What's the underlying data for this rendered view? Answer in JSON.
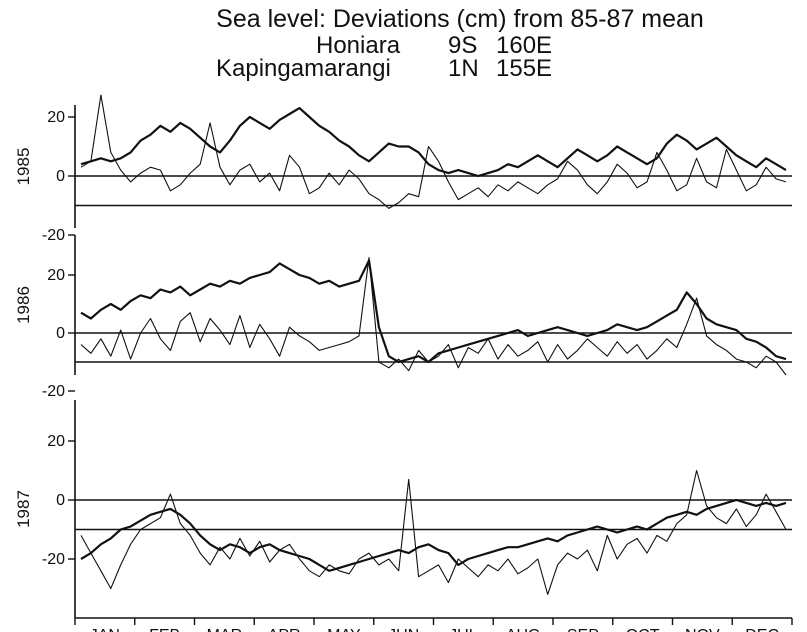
{
  "title": "Sea level: Deviations (cm) from 85-87 mean",
  "stations": [
    {
      "name": "Honiara",
      "lat": "9S",
      "lon": "160E"
    },
    {
      "name": "Kapingamarangi",
      "lat": "1N",
      "lon": "155E"
    }
  ],
  "colors": {
    "ink": "#111111",
    "background": "#ffffff"
  },
  "chart_data": {
    "type": "line",
    "xlabel": "",
    "ylabel": "",
    "x_tick_labels": [
      "JAN",
      "FEB",
      "MAR",
      "APR",
      "MAY",
      "JUN",
      "JUL",
      "AUG",
      "SEP",
      "OCT",
      "NOV",
      "DEC"
    ],
    "panels": [
      {
        "year": "1985",
        "ylim": [
          -25,
          25
        ],
        "y_ticks": [
          "20",
          "0",
          "-20"
        ],
        "reference_lines": [
          0,
          -10
        ],
        "series": [
          {
            "values": [
              4,
              5,
              6,
              5,
              6,
              8,
              12,
              14,
              17,
              15,
              18,
              16,
              13,
              10,
              8,
              12,
              17,
              20,
              18,
              16,
              19,
              21,
              23,
              20,
              17,
              15,
              12,
              10,
              7,
              5,
              8,
              11,
              10,
              10,
              8,
              4,
              2,
              1,
              2,
              1,
              0,
              1,
              2,
              4,
              3,
              5,
              7,
              5,
              3,
              6,
              9,
              7,
              5,
              7,
              10,
              8,
              6,
              4,
              6,
              11,
              14,
              12,
              9,
              11,
              13,
              10,
              7,
              5,
              3,
              6,
              4,
              2
            ]
          },
          {
            "values": [
              3,
              5,
              32,
              8,
              2,
              -2,
              1,
              3,
              2,
              -5,
              -3,
              1,
              4,
              18,
              3,
              -3,
              2,
              4,
              -2,
              1,
              -5,
              7,
              3,
              -6,
              -4,
              1,
              -3,
              2,
              -1,
              -6,
              -8,
              -11,
              -9,
              -6,
              -7,
              10,
              5,
              -2,
              -8,
              -6,
              -4,
              -7,
              -3,
              -5,
              -2,
              -4,
              -6,
              -3,
              -1,
              5,
              2,
              -3,
              -6,
              -2,
              4,
              1,
              -4,
              -2,
              8,
              2,
              -5,
              -3,
              6,
              -2,
              -4,
              9,
              2,
              -5,
              -3,
              3,
              -1,
              -2
            ]
          }
        ]
      },
      {
        "year": "1986",
        "ylim": [
          -25,
          25
        ],
        "y_ticks": [
          "20",
          "0",
          "-20"
        ],
        "reference_lines": [
          0,
          -10
        ],
        "series": [
          {
            "values": [
              7,
              5,
              8,
              10,
              8,
              11,
              13,
              12,
              15,
              14,
              16,
              13,
              15,
              17,
              16,
              18,
              17,
              19,
              20,
              21,
              24,
              22,
              20,
              19,
              17,
              18,
              16,
              17,
              18,
              25,
              2,
              -8,
              -10,
              -9,
              -8,
              -10,
              -7,
              -6,
              -5,
              -4,
              -3,
              -2,
              -1,
              0,
              1,
              -1,
              0,
              1,
              2,
              1,
              0,
              -1,
              0,
              1,
              3,
              2,
              1,
              2,
              4,
              6,
              8,
              14,
              10,
              5,
              3,
              2,
              1,
              -2,
              -3,
              -5,
              -8,
              -9
            ]
          },
          {
            "values": [
              -4,
              -7,
              -2,
              -8,
              1,
              -9,
              0,
              5,
              -2,
              -6,
              4,
              7,
              -3,
              5,
              1,
              -4,
              6,
              -5,
              3,
              -2,
              -8,
              2,
              -1,
              -3,
              -6,
              -5,
              -4,
              -3,
              -1,
              26,
              -10,
              -12,
              -9,
              -13,
              -6,
              -10,
              -8,
              -4,
              -12,
              -5,
              -7,
              -2,
              -9,
              -4,
              -8,
              -6,
              -3,
              -10,
              -4,
              -9,
              -6,
              -2,
              -5,
              -8,
              -3,
              -7,
              -4,
              -9,
              -6,
              -2,
              -5,
              3,
              12,
              -1,
              -4,
              -6,
              -9,
              -10,
              -12,
              -8,
              -10,
              -18
            ]
          }
        ]
      },
      {
        "year": "1987",
        "ylim": [
          -32,
          25
        ],
        "y_ticks": [
          "20",
          "0",
          "-20"
        ],
        "reference_lines": [
          0,
          -10
        ],
        "series": [
          {
            "values": [
              -20,
              -18,
              -15,
              -13,
              -10,
              -9,
              -7,
              -5,
              -4,
              -3,
              -5,
              -8,
              -12,
              -15,
              -17,
              -15,
              -16,
              -18,
              -16,
              -15,
              -17,
              -18,
              -19,
              -20,
              -22,
              -24,
              -23,
              -22,
              -21,
              -20,
              -19,
              -18,
              -17,
              -18,
              -16,
              -15,
              -17,
              -18,
              -22,
              -20,
              -19,
              -18,
              -17,
              -16,
              -16,
              -15,
              -14,
              -13,
              -14,
              -12,
              -11,
              -10,
              -9,
              -10,
              -11,
              -10,
              -9,
              -10,
              -8,
              -6,
              -5,
              -4,
              -5,
              -3,
              -2,
              -1,
              0,
              -1,
              -2,
              -1,
              -2,
              -1
            ]
          },
          {
            "values": [
              -12,
              -18,
              -24,
              -30,
              -22,
              -15,
              -10,
              -8,
              -6,
              2,
              -8,
              -12,
              -18,
              -22,
              -16,
              -20,
              -13,
              -19,
              -14,
              -21,
              -17,
              -15,
              -20,
              -24,
              -26,
              -22,
              -24,
              -25,
              -20,
              -18,
              -22,
              -20,
              -24,
              7,
              -26,
              -24,
              -22,
              -28,
              -20,
              -23,
              -26,
              -22,
              -24,
              -20,
              -25,
              -23,
              -20,
              -32,
              -22,
              -18,
              -20,
              -17,
              -24,
              -12,
              -20,
              -15,
              -13,
              -18,
              -12,
              -14,
              -8,
              -5,
              10,
              -2,
              -6,
              -8,
              -3,
              -9,
              -5,
              2,
              -4,
              -10
            ]
          }
        ]
      }
    ]
  }
}
